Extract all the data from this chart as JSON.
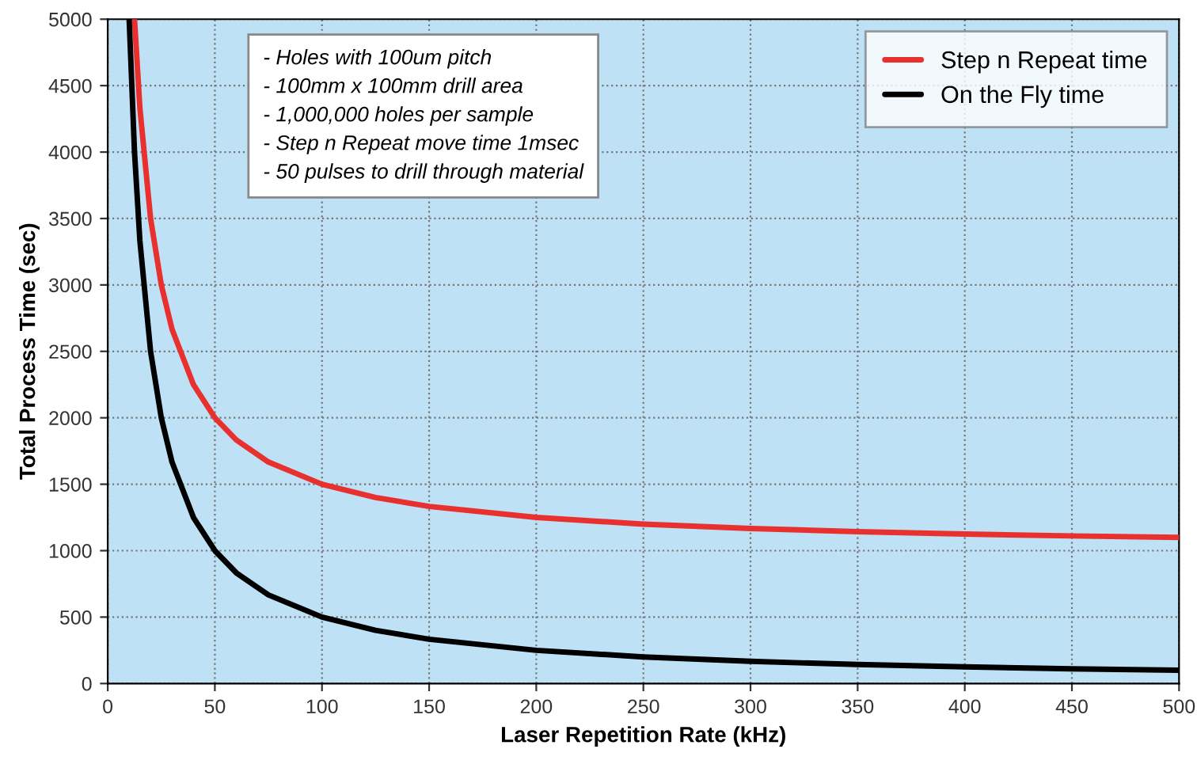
{
  "chart_data": {
    "type": "line",
    "xlabel": "Laser Repetition Rate (kHz)",
    "ylabel": "Total Process Time (sec)",
    "xlim": [
      0,
      500
    ],
    "ylim": [
      0,
      5000
    ],
    "xticks": [
      0,
      50,
      100,
      150,
      200,
      250,
      300,
      350,
      400,
      450,
      500
    ],
    "yticks": [
      0,
      500,
      1000,
      1500,
      2000,
      2500,
      3000,
      3500,
      4000,
      4500,
      5000
    ],
    "grid": true,
    "legend": "top right",
    "marker": "none",
    "line_style": "solid",
    "series": [
      {
        "name": "Step n Repeat time",
        "color": "#e8312f",
        "x": [
          12.5,
          15,
          20,
          25,
          30,
          40,
          50,
          60,
          75,
          100,
          125,
          150,
          200,
          250,
          300,
          350,
          400,
          450,
          500
        ],
        "values": [
          5000,
          4333,
          3500,
          3000,
          2667,
          2250,
          2000,
          1833,
          1667,
          1500,
          1400,
          1333,
          1250,
          1200,
          1167,
          1143,
          1125,
          1111,
          1100
        ]
      },
      {
        "name": "On the Fly time",
        "color": "#000000",
        "x": [
          10,
          12.5,
          15,
          20,
          25,
          30,
          40,
          50,
          60,
          75,
          100,
          125,
          150,
          200,
          250,
          300,
          350,
          400,
          450,
          500
        ],
        "values": [
          5000,
          4000,
          3333,
          2500,
          2000,
          1667,
          1250,
          1000,
          833,
          667,
          500,
          400,
          333,
          250,
          200,
          167,
          143,
          125,
          111,
          100
        ]
      }
    ],
    "annotations": [
      "- Holes with 100um pitch",
      "- 100mm x 100mm drill area",
      "- 1,000,000 holes per sample",
      "- Step n Repeat move time 1msec",
      "- 50 pulses to drill through material"
    ]
  }
}
